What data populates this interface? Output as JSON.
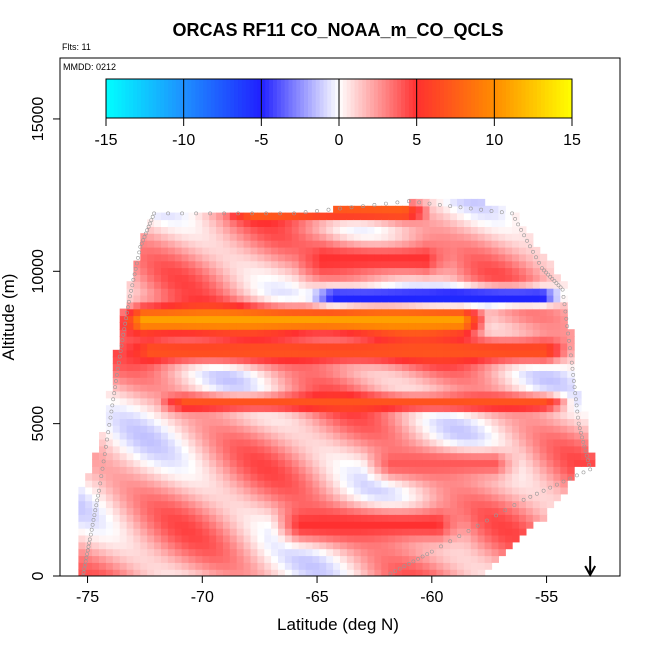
{
  "chart_data": {
    "type": "heatmap",
    "title": "ORCAS RF11 CO_NOAA_m_CO_QCLS",
    "flights_note": "Flts: 11",
    "date_note": "MMDD: 0212",
    "xlabel": "Latitude (deg N)",
    "ylabel": "Altitude (m)",
    "xlim": [
      -76.2,
      -51.8
    ],
    "ylim": [
      0,
      17000
    ],
    "xticks": [
      -75,
      -70,
      -65,
      -60,
      -55
    ],
    "yticks": [
      0,
      5000,
      10000,
      15000
    ],
    "xtick_labels": [
      "-75",
      "-70",
      "-65",
      "-60",
      "-55"
    ],
    "ytick_labels": [
      "0",
      "5000",
      "10000",
      "15000"
    ],
    "colorbar": {
      "range": [
        -15,
        15
      ],
      "ticks": [
        -15,
        -10,
        -5,
        0,
        5,
        10,
        15
      ],
      "tick_labels": [
        "-15",
        "-10",
        "-5",
        "0",
        "5",
        "10",
        "15"
      ],
      "colors": [
        "#00ffff",
        "#1e90ff",
        "#2020ff",
        "#ffffff",
        "#ff3030",
        "#ff8c00",
        "#ffff00"
      ]
    },
    "flight_track": [
      [
        -75.2,
        0
      ],
      [
        -74.9,
        1200
      ],
      [
        -74.5,
        2800
      ],
      [
        -74.0,
        5200
      ],
      [
        -73.6,
        7200
      ],
      [
        -73.2,
        9000
      ],
      [
        -72.7,
        10800
      ],
      [
        -72.1,
        11900
      ],
      [
        -66.0,
        11900
      ],
      [
        -61.0,
        12300
      ],
      [
        -56.5,
        11900
      ],
      [
        -55.2,
        10100
      ],
      [
        -54.3,
        9400
      ],
      [
        -53.9,
        7000
      ],
      [
        -53.6,
        5000
      ],
      [
        -53.1,
        3500
      ],
      [
        -56.0,
        2500
      ],
      [
        -60.0,
        800
      ],
      [
        -62.0,
        0
      ]
    ],
    "features": [
      {
        "lat_range": [
          -73.8,
          -57.5
        ],
        "altitude": 8400,
        "thickness": 450,
        "value": 11
      },
      {
        "lat_range": [
          -65.5,
          -54.0
        ],
        "altitude": 9200,
        "thickness": 300,
        "value": -6
      },
      {
        "lat_range": [
          -73.5,
          -53.8
        ],
        "altitude": 7400,
        "thickness": 400,
        "value": 7
      },
      {
        "lat_range": [
          -72.0,
          -53.8
        ],
        "altitude": 5700,
        "thickness": 250,
        "value": 7
      },
      {
        "lat_range": [
          -69.0,
          -60.0
        ],
        "altitude": 11950,
        "thickness": 250,
        "value": 8
      },
      {
        "lat_range": [
          -67.0,
          -58.5
        ],
        "altitude": 1700,
        "thickness": 600,
        "value": 5
      },
      {
        "lat_range": [
          -66.0,
          -59.0
        ],
        "altitude": 10400,
        "thickness": 600,
        "value": 5
      },
      {
        "lat_range": [
          -63.0,
          -56.0
        ],
        "altitude": 3700,
        "thickness": 500,
        "value": 4
      }
    ],
    "marker": {
      "lat": -53.1,
      "symbol": "↓"
    }
  }
}
